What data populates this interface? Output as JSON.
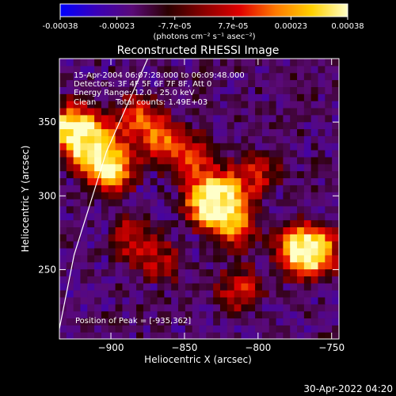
{
  "colorbar": {
    "tick_labels": [
      "-0.00038",
      "-0.00023",
      "-7.7e-05",
      "7.7e-05",
      "0.00023",
      "0.00038"
    ],
    "tick_values": [
      -0.00038,
      -0.00023,
      -7.7e-05,
      7.7e-05,
      0.00023,
      0.00038
    ],
    "range": [
      -0.00038,
      0.00038
    ],
    "units": "(photons cm⁻² s⁻¹ asec⁻²)",
    "colors": [
      "#0000ff",
      "#3a00b8",
      "#5a0a78",
      "#2a0000",
      "#8a0000",
      "#e00000",
      "#ff7a00",
      "#ffd000",
      "#ffffc8"
    ]
  },
  "chart_data": {
    "type": "heatmap",
    "title": "Reconstructed RHESSI Image",
    "xlabel": "Heliocentric X (arcsec)",
    "ylabel": "Heliocentric Y (arcsec)",
    "xlim": [
      -935,
      -745
    ],
    "ylim": [
      203,
      393
    ],
    "xticks": [
      -900,
      -850,
      -800,
      -750
    ],
    "yticks": [
      250,
      300,
      350
    ],
    "annotations": [
      "15-Apr-2004 06:07:28.000 to 06:09:48.000",
      "Detectors: 3F 4F 5F 6F 7F 8F, Att 0",
      "Energy Range: 12.0 - 25.0 keV",
      "Clean",
      "Total counts: 1.49E+03"
    ],
    "peak_label": "Position of Peak = [-935,362]",
    "peak": [
      -935,
      362
    ],
    "sources": [
      {
        "x": -927,
        "y": 346,
        "level": 0.95
      },
      {
        "x": -913,
        "y": 334,
        "level": 1.0
      },
      {
        "x": -900,
        "y": 318,
        "level": 0.85
      },
      {
        "x": -882,
        "y": 352,
        "level": 0.55
      },
      {
        "x": -864,
        "y": 336,
        "level": 0.5
      },
      {
        "x": -834,
        "y": 296,
        "level": 0.75
      },
      {
        "x": -825,
        "y": 299,
        "level": 0.85
      },
      {
        "x": -817,
        "y": 281,
        "level": 0.6
      },
      {
        "x": -845,
        "y": 326,
        "level": 0.45
      },
      {
        "x": -800,
        "y": 316,
        "level": 0.4
      },
      {
        "x": -772,
        "y": 264,
        "level": 0.8
      },
      {
        "x": -760,
        "y": 262,
        "level": 0.75
      },
      {
        "x": -887,
        "y": 272,
        "level": 0.4
      },
      {
        "x": -866,
        "y": 256,
        "level": 0.35
      },
      {
        "x": -812,
        "y": 236,
        "level": 0.45
      }
    ],
    "limb": [
      [
        -875,
        393
      ],
      [
        -903,
        330
      ],
      [
        -925,
        260
      ],
      [
        -935,
        210
      ]
    ]
  },
  "footer": {
    "timestamp": "30-Apr-2022 04:20"
  }
}
